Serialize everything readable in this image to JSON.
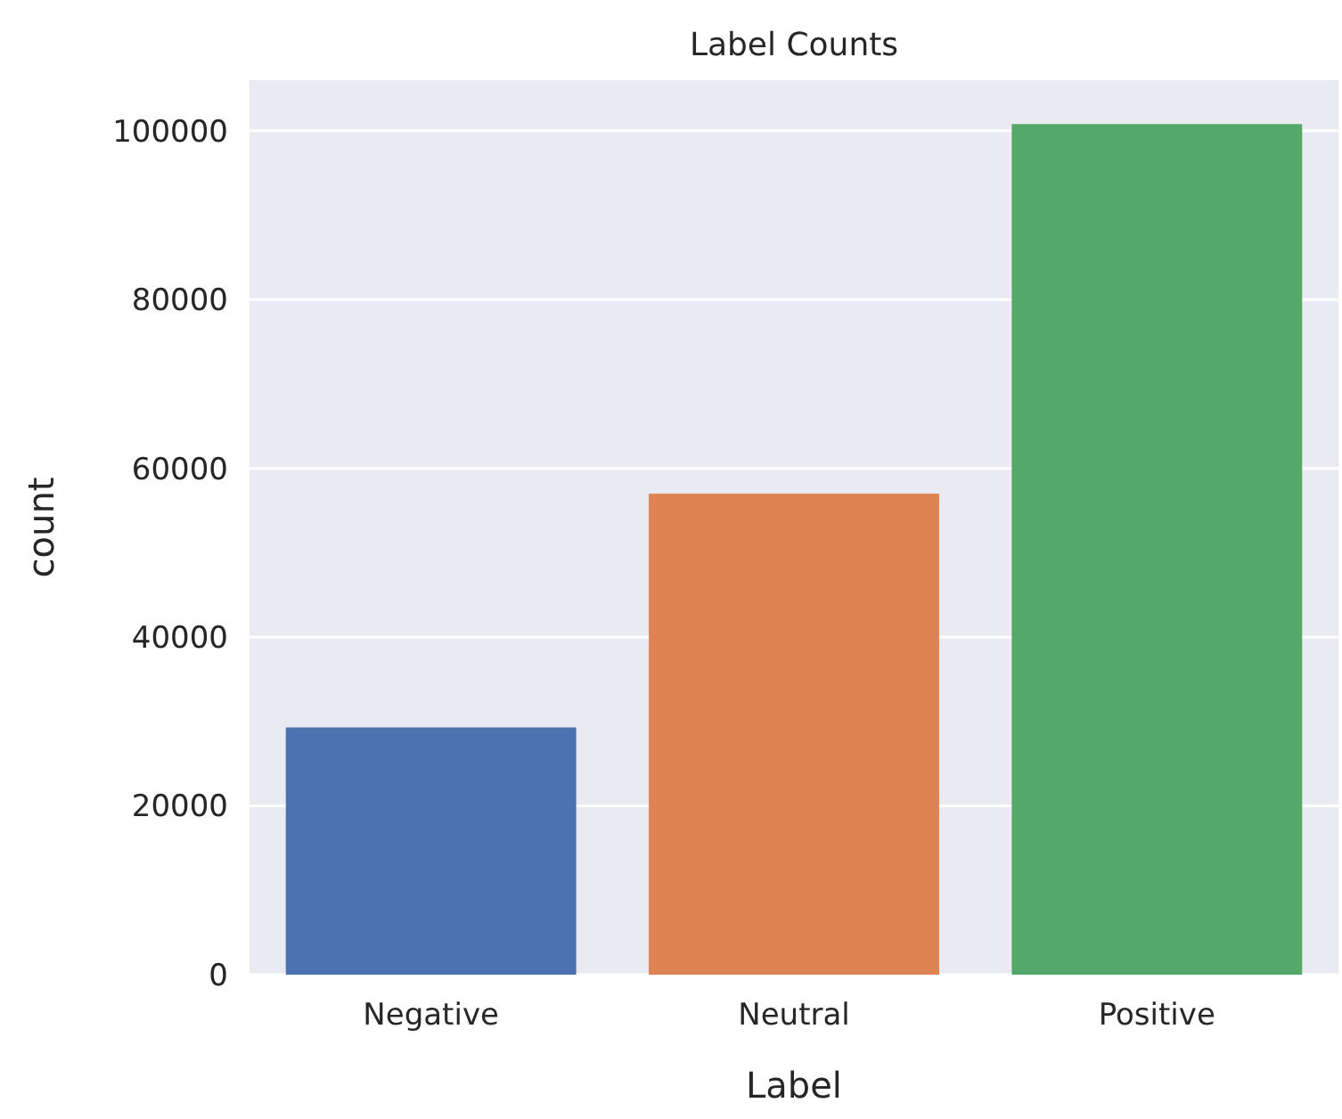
{
  "chart_data": {
    "type": "bar",
    "title": "Label Counts",
    "xlabel": "Label",
    "ylabel": "count",
    "categories": [
      "Negative",
      "Neutral",
      "Positive"
    ],
    "values": [
      29300,
      57000,
      100800
    ],
    "colors": [
      "#4c72b0",
      "#dd8452",
      "#55a868"
    ],
    "ylim": [
      0,
      106000
    ],
    "yticks": [
      0,
      20000,
      40000,
      60000,
      80000,
      100000
    ],
    "grid": "y"
  }
}
